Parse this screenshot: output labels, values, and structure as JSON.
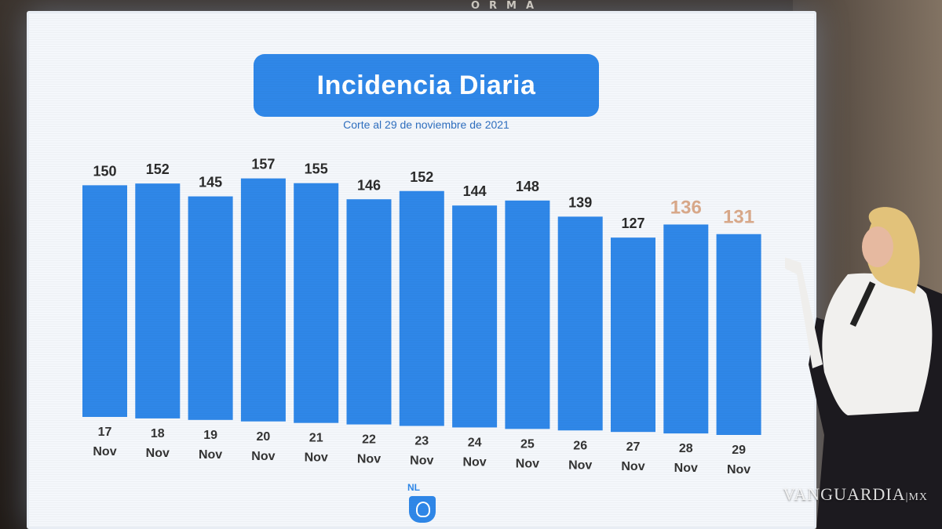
{
  "banner_top": "ORMA",
  "watermark": {
    "brand": "VANGUARDIA",
    "suffix": "MX"
  },
  "logo": {
    "text": "NL"
  },
  "colors": {
    "bar": "#2f87e8",
    "label": "#2b2b2b",
    "highlight": "#d9a98a",
    "title_bg": "#2f87e8"
  },
  "chart_data": {
    "type": "bar",
    "title": "Incidencia Diaria",
    "subtitle": "Corte al 29 de noviembre de 2021",
    "categories": [
      {
        "day": "17",
        "month": "Nov"
      },
      {
        "day": "18",
        "month": "Nov"
      },
      {
        "day": "19",
        "month": "Nov"
      },
      {
        "day": "20",
        "month": "Nov"
      },
      {
        "day": "21",
        "month": "Nov"
      },
      {
        "day": "22",
        "month": "Nov"
      },
      {
        "day": "23",
        "month": "Nov"
      },
      {
        "day": "24",
        "month": "Nov"
      },
      {
        "day": "25",
        "month": "Nov"
      },
      {
        "day": "26",
        "month": "Nov"
      },
      {
        "day": "27",
        "month": "Nov"
      },
      {
        "day": "28",
        "month": "Nov"
      },
      {
        "day": "29",
        "month": "Nov"
      }
    ],
    "values": [
      150,
      152,
      145,
      157,
      155,
      146,
      152,
      144,
      148,
      139,
      127,
      136,
      131
    ],
    "highlighted": [
      false,
      false,
      false,
      false,
      false,
      false,
      false,
      false,
      false,
      false,
      false,
      true,
      true
    ],
    "grid": false,
    "legend": "none"
  }
}
